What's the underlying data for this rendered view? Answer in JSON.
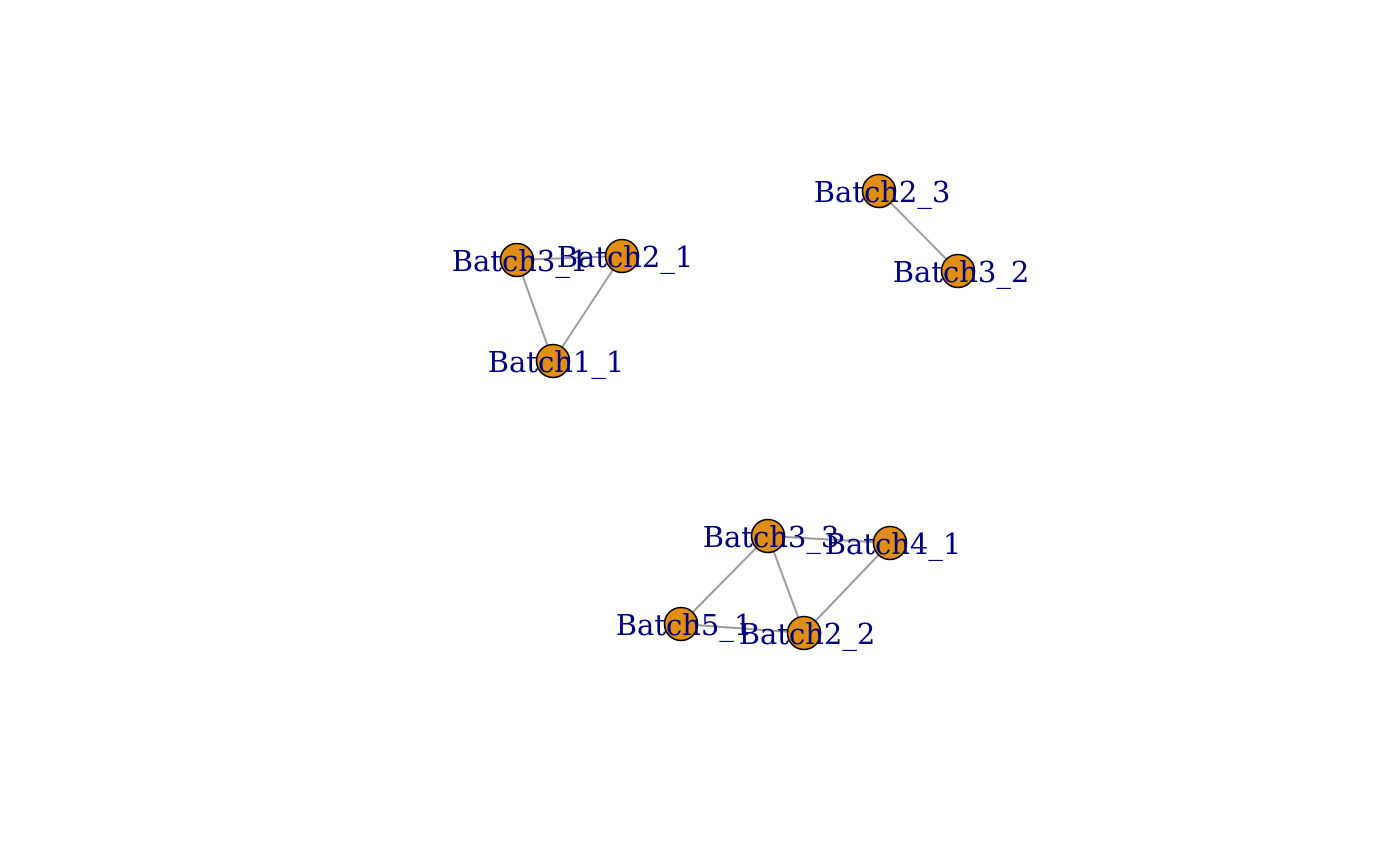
{
  "graph": {
    "node_color": "#e08e14",
    "edge_color": "#9c9c9c",
    "label_color": "#00007f",
    "nodes": [
      {
        "id": "Batch3_1",
        "label": "Batch3_1"
      },
      {
        "id": "Batch2_1",
        "label": "Batch2_1"
      },
      {
        "id": "Batch1_1",
        "label": "Batch1_1"
      },
      {
        "id": "Batch2_3",
        "label": "Batch2_3"
      },
      {
        "id": "Batch3_2",
        "label": "Batch3_2"
      },
      {
        "id": "Batch3_3",
        "label": "Batch3_3"
      },
      {
        "id": "Batch4_1",
        "label": "Batch4_1"
      },
      {
        "id": "Batch5_1",
        "label": "Batch5_1"
      },
      {
        "id": "Batch2_2",
        "label": "Batch2_2"
      }
    ],
    "edges": [
      [
        "Batch3_1",
        "Batch2_1"
      ],
      [
        "Batch3_1",
        "Batch1_1"
      ],
      [
        "Batch2_1",
        "Batch1_1"
      ],
      [
        "Batch2_3",
        "Batch3_2"
      ],
      [
        "Batch3_3",
        "Batch4_1"
      ],
      [
        "Batch3_3",
        "Batch5_1"
      ],
      [
        "Batch3_3",
        "Batch2_2"
      ],
      [
        "Batch4_1",
        "Batch2_2"
      ],
      [
        "Batch5_1",
        "Batch2_2"
      ]
    ]
  }
}
